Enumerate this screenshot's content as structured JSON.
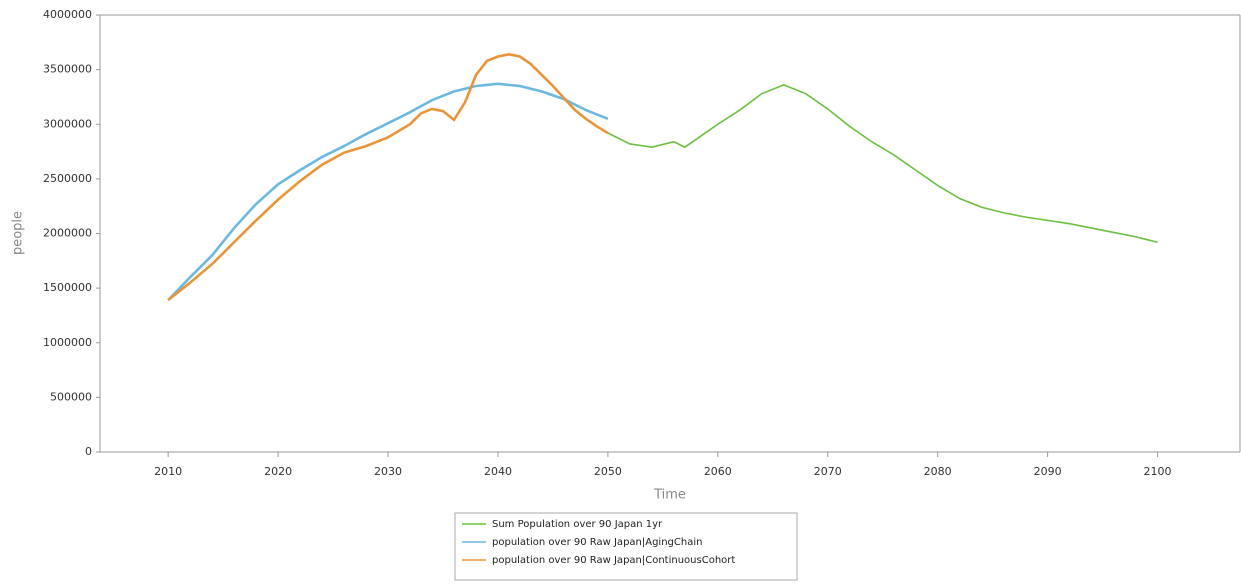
{
  "chart_data": {
    "type": "line",
    "x_label": "Time",
    "y_label": "people",
    "xlim": [
      2003.8,
      2107.5
    ],
    "xticks": [
      2010,
      2020,
      2030,
      2040,
      2050,
      2060,
      2070,
      2080,
      2090,
      2100
    ],
    "ylim": [
      0,
      4000000
    ],
    "yticks": [
      0,
      500000,
      1000000,
      1500000,
      2000000,
      2500000,
      3000000,
      3500000,
      4000000
    ],
    "grid": false,
    "legend": "bottom",
    "series": [
      {
        "name": "Sum Population over 90 Japan 1yr",
        "color": "#6cbf3f",
        "x": [
          2050,
          2052,
          2054,
          2056,
          2057,
          2058,
          2060,
          2062,
          2064,
          2066,
          2068,
          2070,
          2072,
          2074,
          2076,
          2078,
          2080,
          2082,
          2084,
          2086,
          2088,
          2090,
          2092,
          2094,
          2096,
          2098,
          2100
        ],
        "values": [
          2920000,
          2820000,
          2790000,
          2840000,
          2790000,
          2860000,
          3000000,
          3130000,
          3280000,
          3360000,
          3280000,
          3140000,
          2980000,
          2840000,
          2720000,
          2580000,
          2440000,
          2320000,
          2240000,
          2190000,
          2150000,
          2120000,
          2090000,
          2050000,
          2010000,
          1970000,
          1920000
        ]
      },
      {
        "name": "population over 90 Raw Japan|AgingChain",
        "color": "#6bb8e0",
        "x": [
          2010,
          2012,
          2014,
          2016,
          2018,
          2020,
          2022,
          2024,
          2026,
          2028,
          2030,
          2032,
          2034,
          2036,
          2038,
          2040,
          2042,
          2044,
          2046,
          2048,
          2050
        ],
        "values": [
          1390000,
          1600000,
          1800000,
          2050000,
          2270000,
          2450000,
          2580000,
          2700000,
          2800000,
          2910000,
          3010000,
          3110000,
          3220000,
          3300000,
          3350000,
          3370000,
          3350000,
          3300000,
          3230000,
          3130000,
          3050000
        ]
      },
      {
        "name": "population over 90 Raw Japan|ContinuousCohort",
        "color": "#e8953a",
        "x": [
          2010,
          2012,
          2014,
          2016,
          2018,
          2020,
          2022,
          2024,
          2026,
          2028,
          2030,
          2032,
          2033,
          2034,
          2035,
          2036,
          2037,
          2038,
          2039,
          2040,
          2041,
          2042,
          2043,
          2044,
          2045,
          2046,
          2047,
          2048,
          2049,
          2050
        ],
        "values": [
          1390000,
          1550000,
          1720000,
          1920000,
          2120000,
          2310000,
          2480000,
          2630000,
          2740000,
          2800000,
          2880000,
          3000000,
          3100000,
          3140000,
          3120000,
          3040000,
          3200000,
          3450000,
          3580000,
          3620000,
          3640000,
          3620000,
          3550000,
          3450000,
          3350000,
          3240000,
          3130000,
          3050000,
          2980000,
          2920000
        ]
      }
    ]
  }
}
